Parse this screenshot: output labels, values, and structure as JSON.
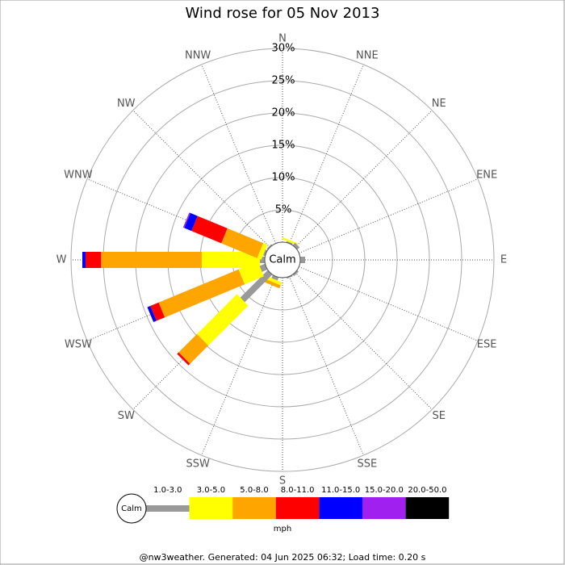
{
  "chart_data": {
    "type": "rose",
    "title": "Wind rose for 05 Nov 2013",
    "categories": [
      "N",
      "NNE",
      "NE",
      "ENE",
      "E",
      "ESE",
      "SE",
      "SSE",
      "S",
      "SSW",
      "SW",
      "WSW",
      "W",
      "WNW",
      "NW",
      "NNW"
    ],
    "calm_label": "Calm",
    "units": "mph",
    "rlim": [
      0,
      30
    ],
    "rticks": [
      {
        "value": 5,
        "label": "5%"
      },
      {
        "value": 10,
        "label": "10%"
      },
      {
        "value": 15,
        "label": "15%"
      },
      {
        "value": 20,
        "label": "20%"
      },
      {
        "value": 25,
        "label": "25%"
      },
      {
        "value": 30,
        "label": "30%"
      }
    ],
    "series": [
      {
        "name": "1.0-3.0",
        "color": "#999999",
        "values": [
          0,
          0.2,
          0.5,
          0,
          0.75,
          0,
          0.3,
          0.2,
          0,
          0.5,
          6,
          0.9,
          0.75,
          0.3,
          0.2,
          0
        ]
      },
      {
        "name": "3.0-5.0",
        "color": "#ffff00",
        "values": [
          0,
          0.3,
          0,
          0,
          0,
          0,
          0,
          0,
          0,
          0.5,
          8.75,
          3.2,
          9,
          0.7,
          0,
          0
        ]
      },
      {
        "name": "5.0-8.0",
        "color": "#ffa500",
        "values": [
          0,
          0,
          0,
          0,
          0,
          0,
          0,
          0,
          0,
          0.5,
          4,
          13.4,
          15.6,
          6,
          0,
          0
        ]
      },
      {
        "name": "8.0-11.0",
        "color": "#ff0000",
        "values": [
          0,
          0,
          0,
          0,
          0,
          0,
          0,
          0,
          0,
          0,
          0.35,
          1.4,
          2.4,
          5,
          0,
          0
        ]
      },
      {
        "name": "11.0-15.0",
        "color": "#0000ff",
        "values": [
          0,
          0,
          0,
          0,
          0,
          0,
          0,
          0,
          0,
          0,
          0,
          0.5,
          0.5,
          1.2,
          0,
          0
        ]
      },
      {
        "name": "15.0-20.0",
        "color": "#a020f0",
        "values": [
          0,
          0,
          0,
          0,
          0,
          0,
          0,
          0,
          0,
          0,
          0,
          0,
          0,
          0.2,
          0,
          0
        ]
      },
      {
        "name": "20.0-50.0",
        "color": "#000000",
        "values": [
          0,
          0,
          0,
          0,
          0,
          0,
          0,
          0,
          0,
          0,
          0,
          0,
          0,
          0,
          0,
          0
        ]
      }
    ],
    "footer": "@nw3weather. Generated: 04 Jun 2025 06:32; Load time: 0.20 s"
  }
}
